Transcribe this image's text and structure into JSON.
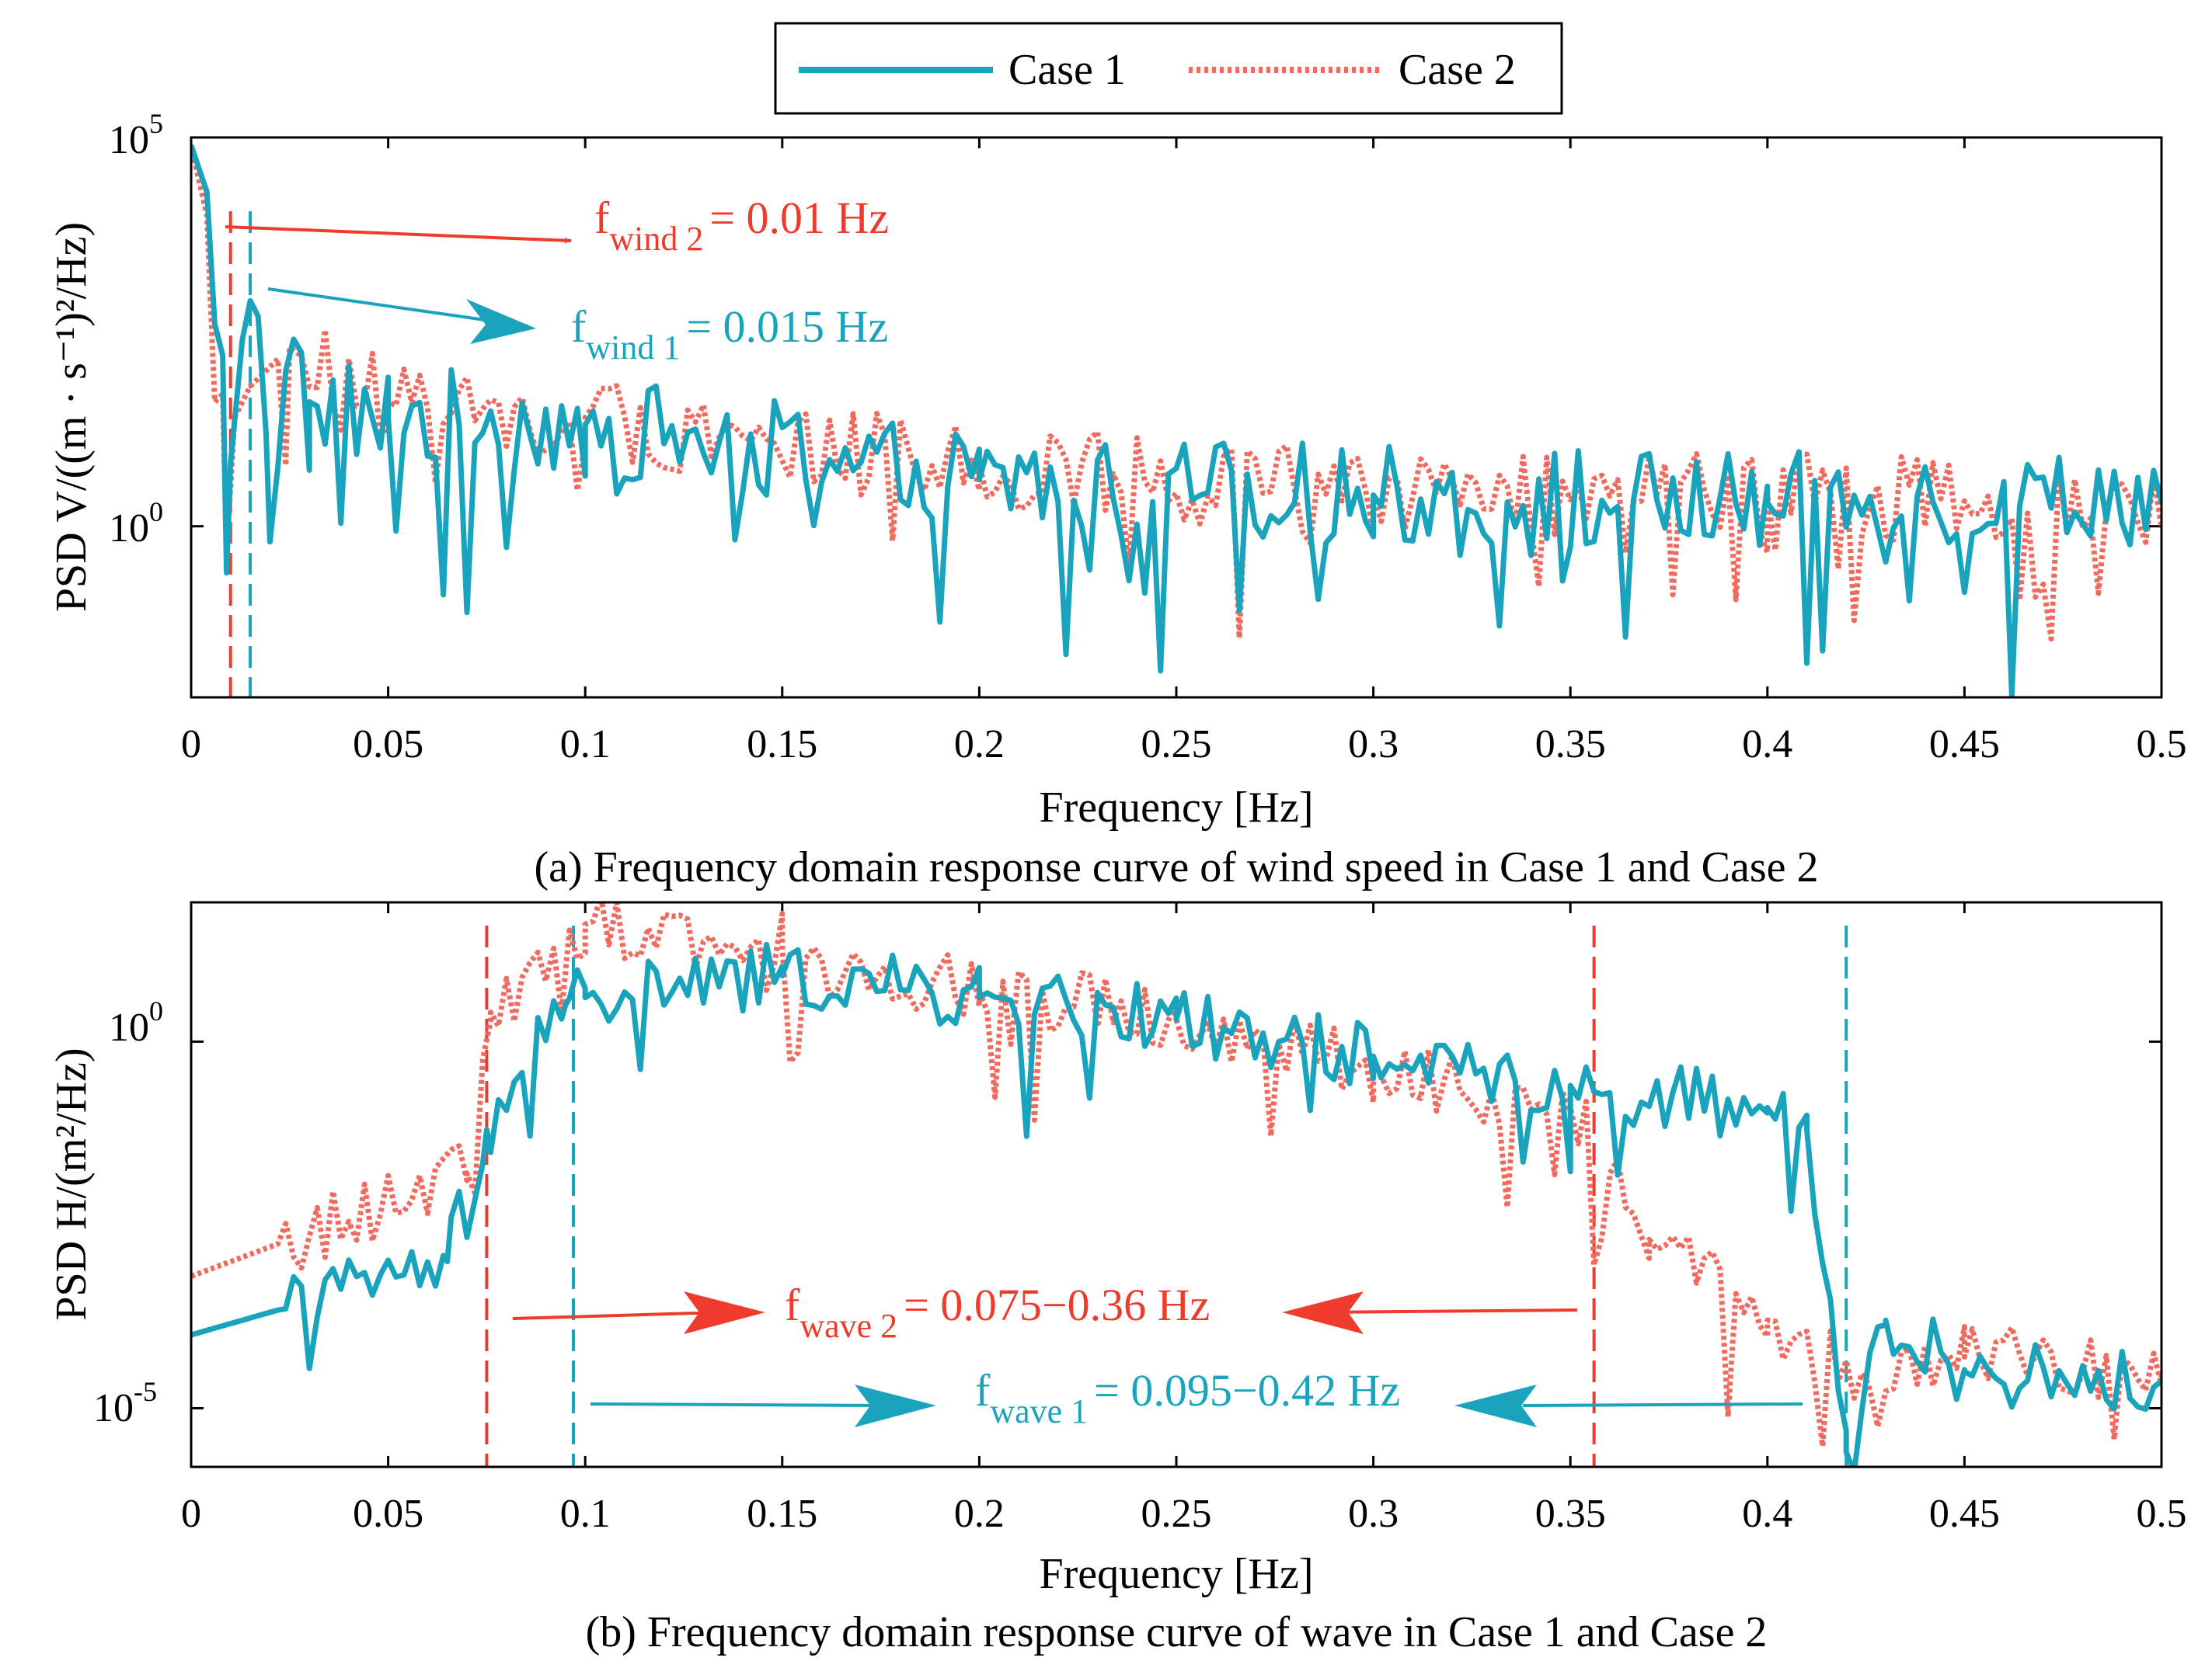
{
  "colors": {
    "case1": "#1aa3bd",
    "case2": "#f26a5e",
    "case2_arrow": "#ef3b2c",
    "axis": "#000000"
  },
  "legend": {
    "entries": [
      {
        "label": "Case 1",
        "style": "solid"
      },
      {
        "label": "Case 2",
        "style": "dotted"
      }
    ]
  },
  "chart_data": [
    {
      "type": "line",
      "panel": "a",
      "caption": "(a) Frequency domain response curve of wind speed in Case 1 and Case 2",
      "xlabel": "Frequency [Hz]",
      "ylabel": "PSD V/((m · s⁻¹)²/Hz)",
      "yscale": "log",
      "xlim": [
        0,
        0.5
      ],
      "ylim_log10": [
        -2.2,
        5
      ],
      "xticks": [
        "0",
        "0.05",
        "0.1",
        "0.15",
        "0.2",
        "0.25",
        "0.3",
        "0.35",
        "0.4",
        "0.45",
        "0.5"
      ],
      "yticks": [
        {
          "base": "10",
          "exp": "5",
          "log": 5
        },
        {
          "base": "10",
          "exp": "0",
          "log": 0
        }
      ],
      "series": [
        {
          "name": "Case 1",
          "style": "solid",
          "shape": "wind1",
          "anchors_log10": [
            [
              0,
              4.9
            ],
            [
              0.004,
              4.3
            ],
            [
              0.006,
              2.6
            ],
            [
              0.008,
              2.2
            ],
            [
              0.009,
              -0.6
            ],
            [
              0.01,
              0.8
            ],
            [
              0.013,
              2.4
            ],
            [
              0.015,
              2.9
            ],
            [
              0.017,
              2.7
            ],
            [
              0.019,
              1.2
            ],
            [
              0.02,
              -0.2
            ],
            [
              0.025,
              2.2
            ],
            [
              0.03,
              1.6
            ],
            [
              0.05,
              1.4
            ],
            [
              0.1,
              1.3
            ],
            [
              0.2,
              0.6
            ],
            [
              0.3,
              0.4
            ],
            [
              0.4,
              0.3
            ],
            [
              0.5,
              0.4
            ]
          ]
        },
        {
          "name": "Case 2",
          "style": "dotted",
          "shape": "wind2",
          "anchors_log10": [
            [
              0,
              4.9
            ],
            [
              0.004,
              4.0
            ],
            [
              0.006,
              1.6
            ],
            [
              0.008,
              1.7
            ],
            [
              0.009,
              -0.4
            ],
            [
              0.011,
              1.4
            ],
            [
              0.015,
              1.8
            ],
            [
              0.025,
              2.3
            ],
            [
              0.05,
              1.6
            ],
            [
              0.1,
              1.4
            ],
            [
              0.2,
              0.8
            ],
            [
              0.3,
              0.4
            ],
            [
              0.4,
              0.4
            ],
            [
              0.5,
              0.3
            ]
          ]
        }
      ],
      "markers": [
        {
          "series": "Case 2",
          "x": 0.01
        },
        {
          "series": "Case 1",
          "x": 0.015
        }
      ],
      "annotations": [
        {
          "series": "Case 2",
          "base": "f",
          "sub": "wind 2",
          "text": "= 0.01 Hz"
        },
        {
          "series": "Case 1",
          "base": "f",
          "sub": "wind 1",
          "text": "= 0.015 Hz"
        }
      ]
    },
    {
      "type": "line",
      "panel": "b",
      "caption": "(b) Frequency domain response curve of wave in Case 1 and Case 2",
      "xlabel": "Frequency [Hz]",
      "ylabel": "PSD H/(m²/Hz)",
      "yscale": "log",
      "xlim": [
        0,
        0.5
      ],
      "ylim_log10": [
        -5.8,
        1.9
      ],
      "xticks": [
        "0",
        "0.05",
        "0.1",
        "0.15",
        "0.2",
        "0.25",
        "0.3",
        "0.35",
        "0.4",
        "0.45",
        "0.5"
      ],
      "yticks": [
        {
          "base": "10",
          "exp": "0",
          "log": 0
        },
        {
          "base": "10",
          "exp": "-5",
          "log": -5
        }
      ],
      "series": [
        {
          "name": "Case 1",
          "style": "solid",
          "shape": "wave1",
          "anchors_log10": [
            [
              0,
              -4
            ],
            [
              0.065,
              -3.0
            ],
            [
              0.075,
              -1.2
            ],
            [
              0.095,
              0.5
            ],
            [
              0.1,
              0.6
            ],
            [
              0.15,
              0.9
            ],
            [
              0.2,
              0.6
            ],
            [
              0.25,
              0.3
            ],
            [
              0.3,
              -0.2
            ],
            [
              0.35,
              -0.6
            ],
            [
              0.4,
              -0.9
            ],
            [
              0.41,
              -1.2
            ],
            [
              0.42,
              -5.6
            ],
            [
              0.43,
              -3.8
            ],
            [
              0.45,
              -4.5
            ],
            [
              0.5,
              -4.7
            ]
          ]
        },
        {
          "name": "Case 2",
          "style": "dotted",
          "shape": "wave2",
          "anchors_log10": [
            [
              0,
              -3.2
            ],
            [
              0.07,
              -1.8
            ],
            [
              0.076,
              0.4
            ],
            [
              0.1,
              1.6
            ],
            [
              0.15,
              1.3
            ],
            [
              0.2,
              0.7
            ],
            [
              0.25,
              0.3
            ],
            [
              0.3,
              -0.4
            ],
            [
              0.35,
              -0.9
            ],
            [
              0.36,
              -1.8
            ],
            [
              0.37,
              -2.7
            ],
            [
              0.4,
              -3.8
            ],
            [
              0.425,
              -4.6
            ],
            [
              0.45,
              -4.3
            ],
            [
              0.5,
              -4.5
            ]
          ]
        }
      ],
      "markers": [
        {
          "series": "Case 2",
          "x": 0.075
        },
        {
          "series": "Case 1",
          "x": 0.097
        },
        {
          "series": "Case 2",
          "x": 0.356
        },
        {
          "series": "Case 1",
          "x": 0.42
        }
      ],
      "annotations": [
        {
          "series": "Case 2",
          "base": "f",
          "sub": "wave 2",
          "text": "= 0.075−0.36 Hz"
        },
        {
          "series": "Case 1",
          "base": "f",
          "sub": "wave 1",
          "text": "= 0.095−0.42 Hz"
        }
      ]
    }
  ]
}
